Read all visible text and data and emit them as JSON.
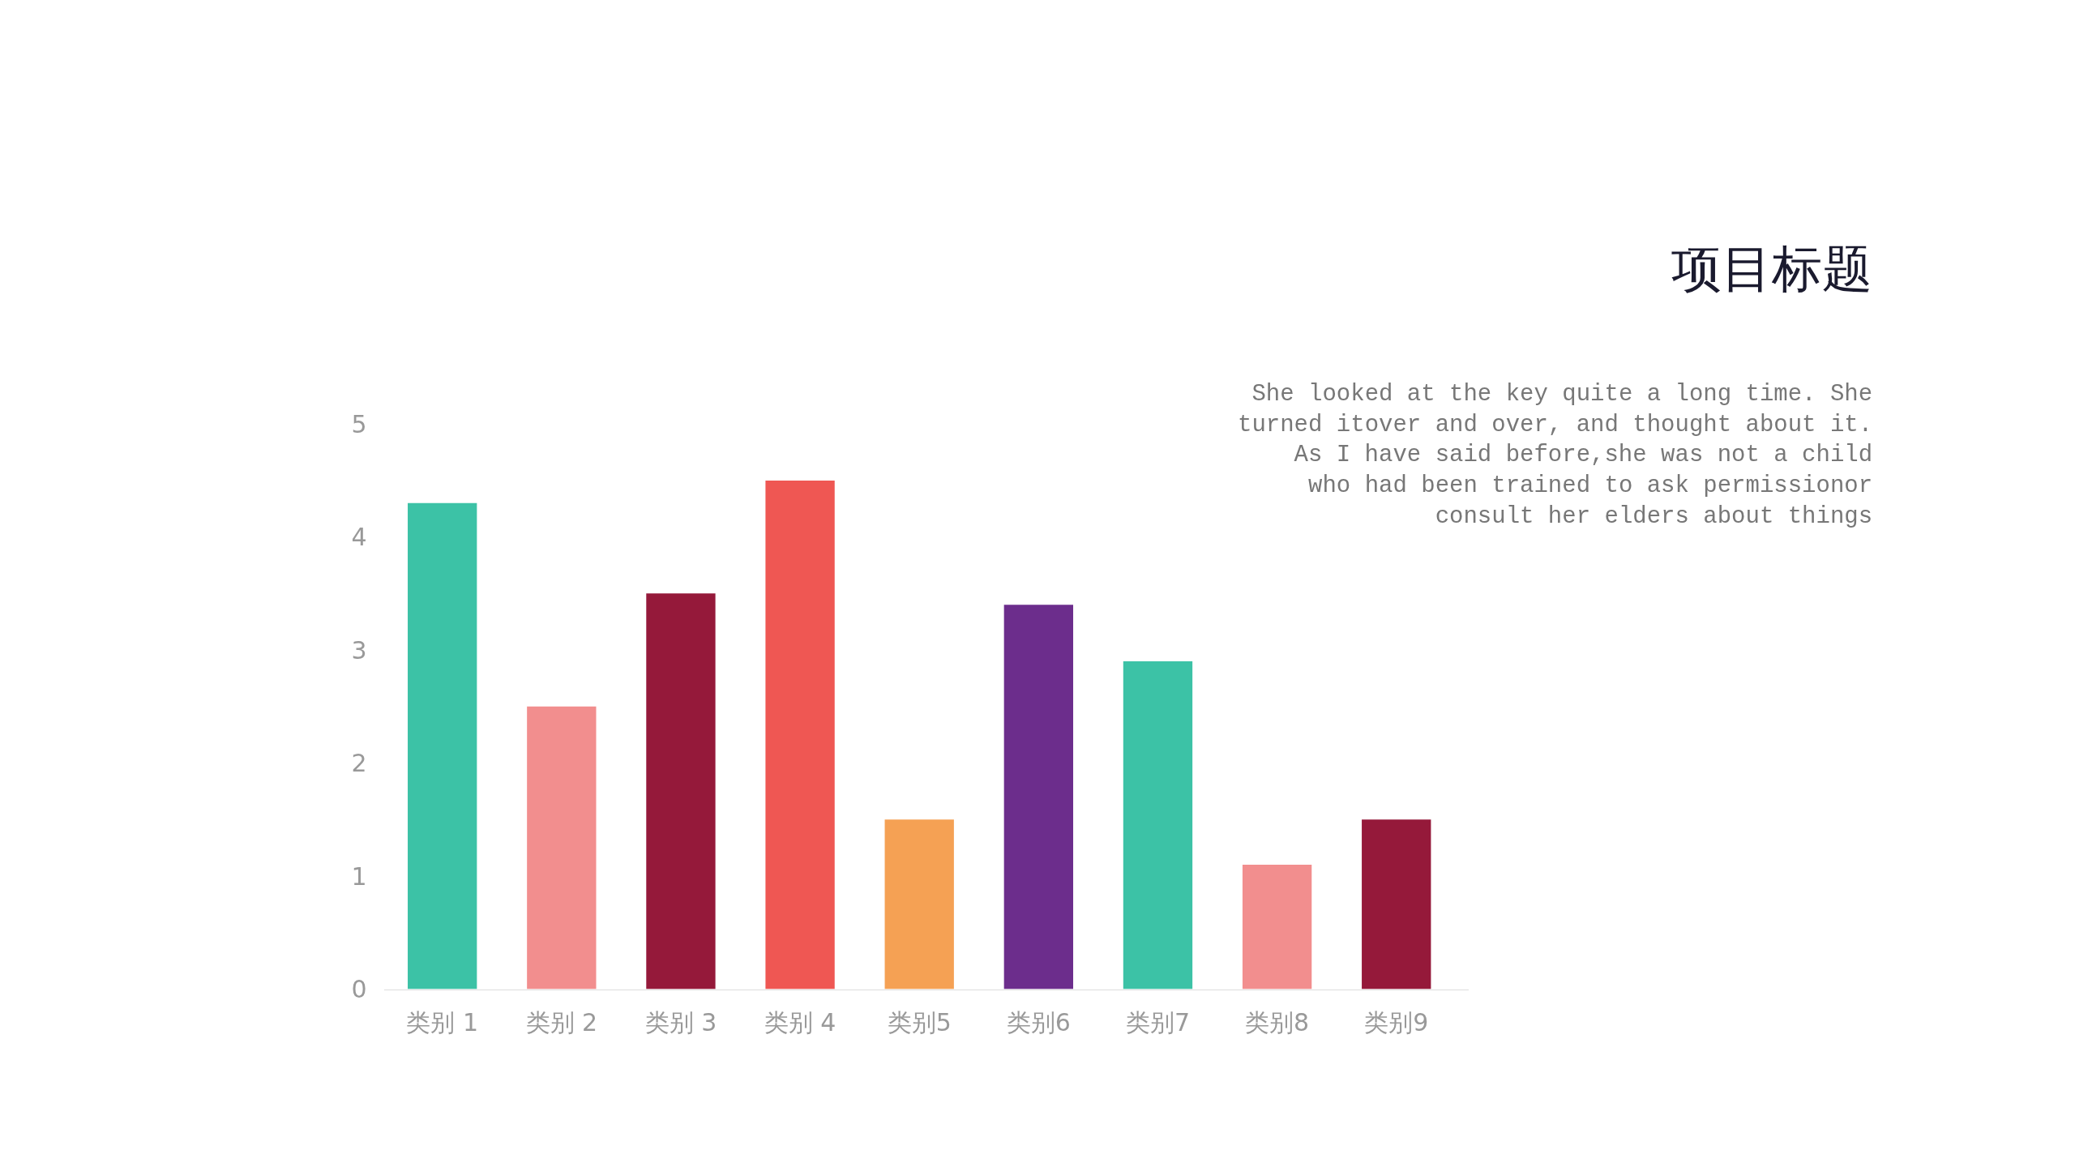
{
  "chart_data": {
    "type": "bar",
    "title": "项目标题",
    "annotations": [
      "She looked at the key quite a long time. She\nturned itover and over, and thought about it.\nAs I have said before,she was not a child\nwho had been trained to ask permissionor\nconsult her elders about things"
    ],
    "categories": [
      "类别 1",
      "类别 2",
      "类别 3",
      "类别 4",
      "类别5",
      "类别6",
      "类别7",
      "类别8",
      "类别9"
    ],
    "values": [
      4.3,
      2.5,
      3.5,
      4.5,
      1.5,
      3.4,
      2.9,
      1.1,
      1.5
    ],
    "colors": [
      "#3cc2a6",
      "#f28e8e",
      "#95193a",
      "#ef5753",
      "#f5a154",
      "#6c2d8c",
      "#3cc2a6",
      "#f28e8e",
      "#95193a"
    ],
    "ylim": [
      0,
      5
    ],
    "yticks": [
      0,
      1,
      2,
      3,
      4,
      5
    ],
    "legend": false
  }
}
